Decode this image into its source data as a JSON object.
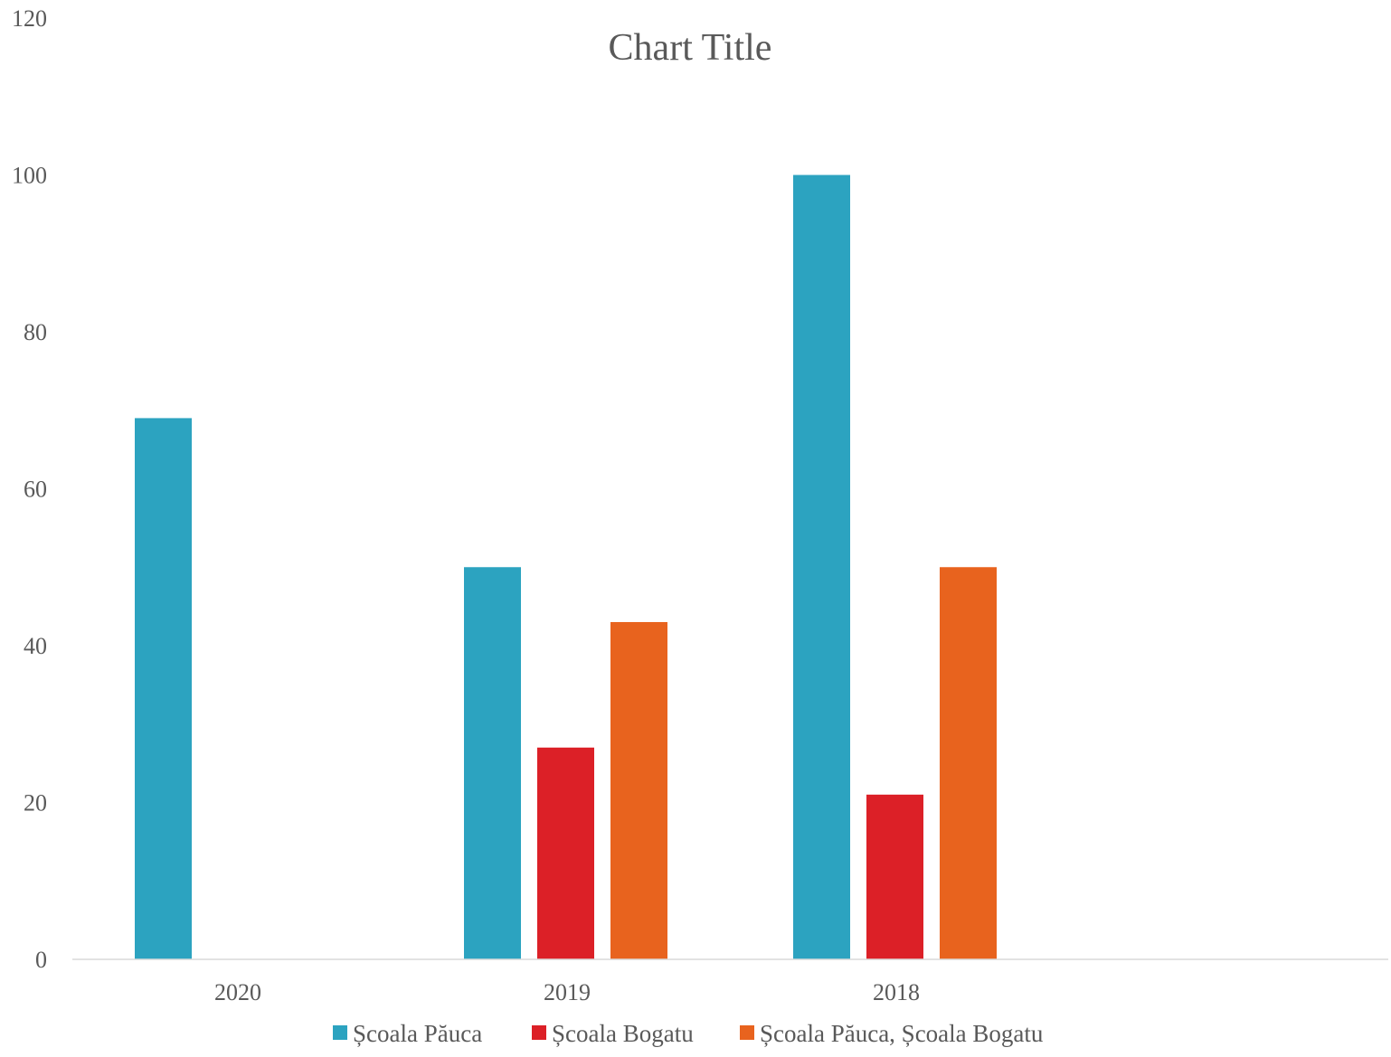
{
  "chart_data": {
    "type": "bar",
    "title": "Chart Title",
    "xlabel": "",
    "ylabel": "",
    "categories": [
      "2020",
      "2019",
      "2018"
    ],
    "ylim": [
      0,
      120
    ],
    "yticks": [
      0,
      20,
      40,
      60,
      80,
      100,
      120
    ],
    "grid": false,
    "legend_position": "bottom",
    "series": [
      {
        "name": "Școala Păuca",
        "color": "#2ca3c0",
        "values": [
          69,
          50,
          100
        ]
      },
      {
        "name": "Școala Bogatu",
        "color": "#dc2027",
        "values": [
          null,
          27,
          21
        ]
      },
      {
        "name": "Școala Păuca, Școala Bogatu",
        "color": "#e8631e",
        "values": [
          null,
          43,
          50
        ]
      }
    ]
  }
}
